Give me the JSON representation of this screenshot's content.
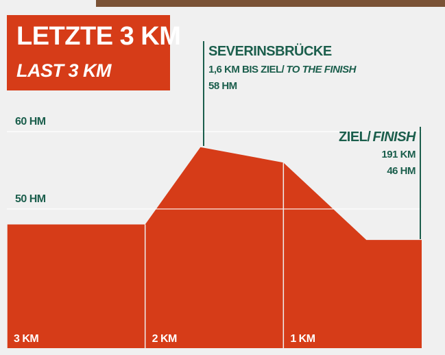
{
  "chart_data": {
    "type": "area",
    "title": "LETZTE 3 KM",
    "subtitle": "LAST 3 KM",
    "x": [
      3,
      2,
      1.6,
      1,
      0.4,
      0
    ],
    "values": [
      48,
      48,
      58,
      56,
      46,
      46
    ],
    "color": "#d63c18",
    "xlim": [
      3,
      0
    ],
    "xticks": [
      {
        "value": 3,
        "label": "3 KM"
      },
      {
        "value": 2,
        "label": "2 KM"
      },
      {
        "value": 1,
        "label": "1 KM"
      }
    ],
    "ylim": [
      32,
      64
    ],
    "yticks": [
      {
        "value": 50,
        "label": "50 HM"
      },
      {
        "value": 60,
        "label": "60 HM"
      }
    ],
    "grid": true,
    "annotations": [
      {
        "lines": [
          "SEVERINSBRÜCKE",
          "1,6 KM BIS ZIEL/",
          "TO THE FINISH",
          "58 HM"
        ]
      },
      {
        "lines": [
          "ZIEL/",
          "FINISH",
          "191 KM",
          "46 HM"
        ]
      }
    ]
  }
}
